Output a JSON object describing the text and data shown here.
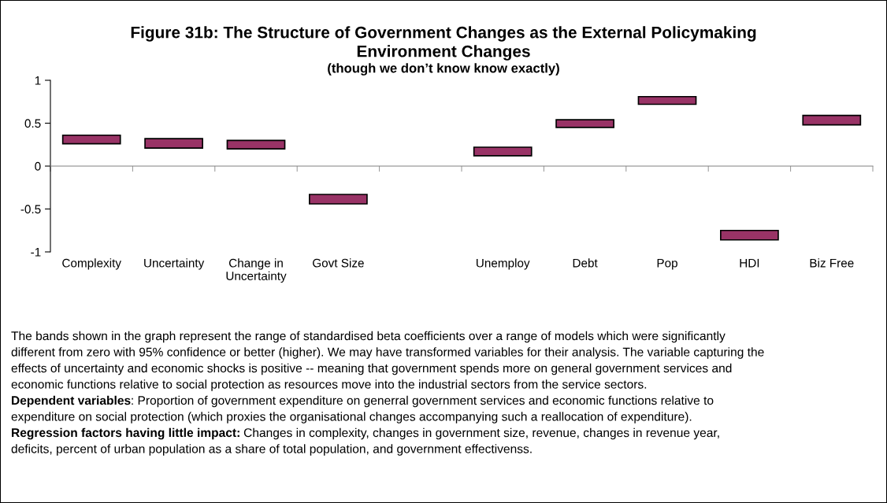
{
  "chart_data": {
    "type": "bar",
    "title": "Figure 31b: The Structure of Government Changes as the External Policymaking\nEnvironment Changes",
    "subtitle": "(though we don’t know know exactly)",
    "categories": [
      "Complexity",
      "Uncertainty",
      "Change in\nUncertainty",
      "Govt Size",
      null,
      "Unemploy",
      "Debt",
      "Pop",
      "HDI",
      "Biz Free"
    ],
    "base": [
      0.26,
      0.21,
      0.2,
      -0.44,
      null,
      0.12,
      0.45,
      0.72,
      -0.86,
      0.48
    ],
    "values": [
      0.1,
      0.11,
      0.1,
      0.11,
      null,
      0.1,
      0.09,
      0.09,
      0.11,
      0.11
    ],
    "color": "#993366",
    "ylim": [
      -1,
      1
    ],
    "yticks": [
      -1,
      -0.5,
      0,
      0.5,
      1
    ],
    "legend": false,
    "annotations": [
      "The bands shown in the graph represent the range of standardised beta coefficients over a range of models which were significantly",
      "different from zero with 95% confidence or better (higher). We may have transformed variables for their analysis. The variable capturing the",
      "effects of uncertainty and economic shocks is positive -- meaning that government spends more on general government services and",
      "economic functions relative to social protection as resources move into the industrial sectors from the service sectors.",
      "Dependent variables",
      ": Proportion of government expenditure on generral government services and economic functions relative to",
      "expenditure on social protection (which proxies the organisational changes accompanying such a reallocation of expenditure).",
      "Regression factors having little impact:",
      " Changes in complexity, changes in government size, revenue, changes in revenue year,",
      "deficits, percent of urban population as a share of total population, and government effectivenss."
    ]
  }
}
